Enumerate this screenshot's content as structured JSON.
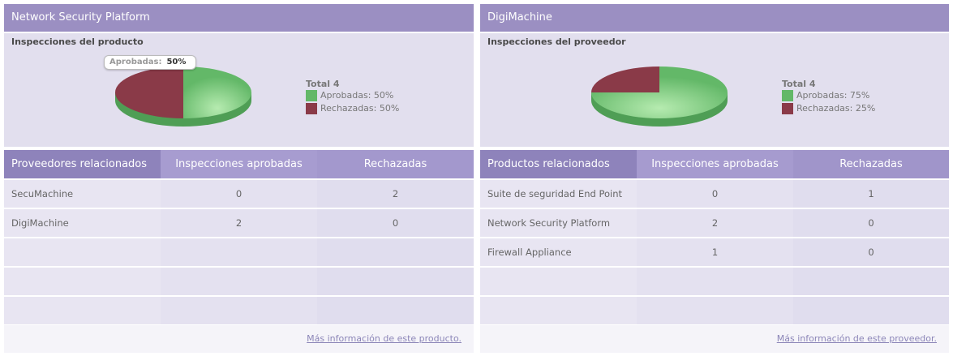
{
  "colors": {
    "approved": "#63b868",
    "rejected": "#8a3a48",
    "header": "#9b8fc2"
  },
  "left": {
    "title": "Network Security Platform",
    "chart_title": "Inspecciones del producto",
    "tooltip": {
      "label": "Aprobadas:",
      "value": "50%"
    },
    "legend": {
      "total": "Total  4",
      "approved": "Aprobadas: 50%",
      "rejected": "Rechazadas: 50%"
    },
    "chart_data": {
      "type": "pie",
      "title": "Inspecciones del producto",
      "categories": [
        "Aprobadas",
        "Rechazadas"
      ],
      "values": [
        2,
        2
      ],
      "percent": [
        50,
        50
      ],
      "total": 4
    },
    "headers": [
      "Proveedores relacionados",
      "Inspecciones aprobadas",
      "Rechazadas"
    ],
    "rows": [
      [
        "SecuMachine",
        "0",
        "2"
      ],
      [
        "DigiMachine",
        "2",
        "0"
      ],
      [
        "",
        "",
        ""
      ],
      [
        "",
        "",
        ""
      ],
      [
        "",
        "",
        ""
      ]
    ],
    "footer_link": "Más información de este producto."
  },
  "right": {
    "title": "DigiMachine",
    "chart_title": "Inspecciones del proveedor",
    "legend": {
      "total": "Total  4",
      "approved": "Aprobadas: 75%",
      "rejected": "Rechazadas: 25%"
    },
    "chart_data": {
      "type": "pie",
      "title": "Inspecciones del proveedor",
      "categories": [
        "Aprobadas",
        "Rechazadas"
      ],
      "values": [
        3,
        1
      ],
      "percent": [
        75,
        25
      ],
      "total": 4
    },
    "headers": [
      "Productos relacionados",
      "Inspecciones aprobadas",
      "Rechazadas"
    ],
    "rows": [
      [
        "Suite de seguridad End Point",
        "0",
        "1"
      ],
      [
        "Network Security Platform",
        "2",
        "0"
      ],
      [
        "Firewall Appliance",
        "1",
        "0"
      ],
      [
        "",
        "",
        ""
      ],
      [
        "",
        "",
        ""
      ]
    ],
    "footer_link": "Más información de este proveedor."
  }
}
